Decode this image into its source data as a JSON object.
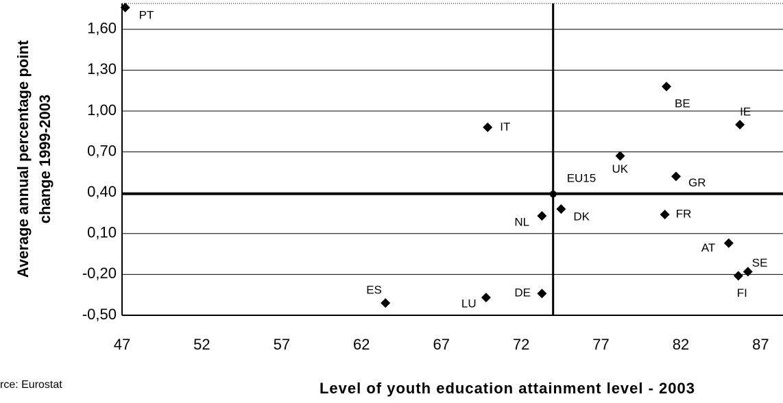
{
  "chart_data": {
    "type": "scatter",
    "x_label": "Level of youth education attainment level - 2003",
    "y_label": [
      "Average annual percentage point",
      "change 1999-2003"
    ],
    "source": "rce: Eurostat",
    "color": "#000000",
    "grid": true,
    "points": [
      {
        "label": "PT",
        "x": 47.2,
        "y": 1.76
      },
      {
        "label": "IT",
        "x": 69.9,
        "y": 0.88
      },
      {
        "label": "BE",
        "x": 81.1,
        "y": 1.18
      },
      {
        "label": "IE",
        "x": 85.7,
        "y": 0.9
      },
      {
        "label": "UK",
        "x": 78.2,
        "y": 0.67
      },
      {
        "label": "GR",
        "x": 81.7,
        "y": 0.52
      },
      {
        "label": "EU15",
        "x": 74.0,
        "y": 0.39
      },
      {
        "label": "NL",
        "x": 73.3,
        "y": 0.23
      },
      {
        "label": "DK",
        "x": 74.5,
        "y": 0.28
      },
      {
        "label": "FR",
        "x": 81.0,
        "y": 0.24
      },
      {
        "label": "AT",
        "x": 85.0,
        "y": 0.03
      },
      {
        "label": "SE",
        "x": 86.2,
        "y": -0.18
      },
      {
        "label": "FI",
        "x": 85.6,
        "y": -0.21
      },
      {
        "label": "ES",
        "x": 63.5,
        "y": -0.41
      },
      {
        "label": "LU",
        "x": 69.8,
        "y": -0.37
      },
      {
        "label": "DE",
        "x": 73.3,
        "y": -0.34
      }
    ],
    "xlim": [
      47,
      88.4
    ],
    "xticks": [
      47,
      52,
      57,
      62,
      67,
      72,
      77,
      82,
      87
    ],
    "ylim": [
      -0.5,
      1.79
    ],
    "yticks": [
      {
        "value": -0.5,
        "label": "-0,50"
      },
      {
        "value": -0.2,
        "label": "-0,20"
      },
      {
        "value": 0.1,
        "label": "0,10"
      },
      {
        "value": 0.4,
        "label": "0,40"
      },
      {
        "value": 0.7,
        "label": "0,70"
      },
      {
        "value": 1.0,
        "label": "1,00"
      },
      {
        "value": 1.3,
        "label": "1,30"
      },
      {
        "value": 1.6,
        "label": "1,60"
      }
    ]
  }
}
